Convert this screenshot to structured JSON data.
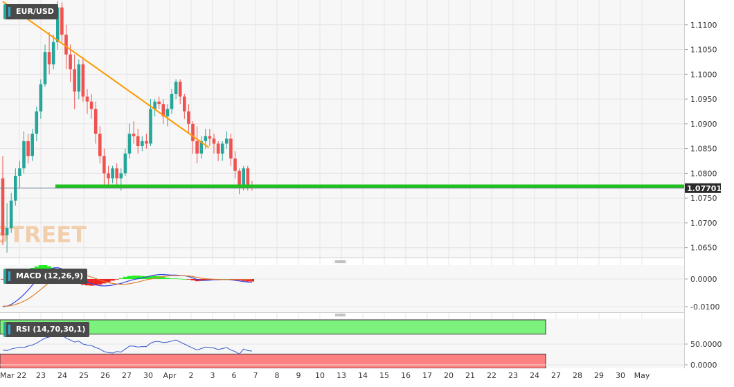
{
  "chart_data": [
    {
      "panel": "price",
      "type": "candlestick",
      "symbol": "EUR/USD",
      "watermark": "FXSTREET",
      "current_price_label": "1.07701",
      "current_price": 1.07701,
      "ylim": [
        1.063,
        1.115
      ],
      "y_ticks": [
        "1.1100",
        "1.1050",
        "1.1000",
        "1.0950",
        "1.0900",
        "1.0850",
        "1.0800",
        "1.0750",
        "1.0700",
        "1.0650"
      ],
      "y_tick_values": [
        1.11,
        1.105,
        1.1,
        1.095,
        1.09,
        1.085,
        1.08,
        1.075,
        1.07,
        1.065
      ],
      "x_ticks": [
        "Mar 22",
        "23",
        "24",
        "25",
        "26",
        "27",
        "30",
        "Apr",
        "2",
        "3",
        "6",
        "7",
        "8",
        "9",
        "10",
        "13",
        "14",
        "15",
        "16",
        "17",
        "20",
        "21",
        "22",
        "23",
        "24",
        "27",
        "28",
        "29",
        "30",
        "May"
      ],
      "support_level": 1.0774,
      "trendline": {
        "from": [
          0,
          1.1147
        ],
        "to": [
          48.8,
          1.0852
        ]
      },
      "candles": [
        [
          1.079,
          1.0835,
          1.0655,
          1.0675
        ],
        [
          1.0675,
          1.074,
          1.064,
          1.069
        ],
        [
          1.069,
          1.076,
          1.068,
          1.0745
        ],
        [
          1.0745,
          1.081,
          1.0735,
          1.0795
        ],
        [
          1.0795,
          1.0825,
          1.077,
          1.081
        ],
        [
          1.081,
          1.0885,
          1.08,
          1.0865
        ],
        [
          1.0865,
          1.088,
          1.082,
          1.0835
        ],
        [
          1.0835,
          1.089,
          1.0825,
          1.088
        ],
        [
          1.088,
          1.0935,
          1.0865,
          1.0925
        ],
        [
          1.0925,
          1.099,
          1.091,
          1.098
        ],
        [
          1.098,
          1.106,
          1.0975,
          1.1045
        ],
        [
          1.1045,
          1.1085,
          1.1,
          1.102
        ],
        [
          1.102,
          1.108,
          1.101,
          1.1065
        ],
        [
          1.1065,
          1.1148,
          1.105,
          1.1135
        ],
        [
          1.1135,
          1.1145,
          1.1065,
          1.108
        ],
        [
          1.108,
          1.11,
          1.101,
          1.104
        ],
        [
          1.104,
          1.106,
          1.0985,
          1.101
        ],
        [
          1.101,
          1.104,
          1.093,
          1.0965
        ],
        [
          1.0965,
          1.103,
          1.095,
          1.102
        ],
        [
          1.102,
          1.1035,
          1.0945,
          1.0955
        ],
        [
          1.0955,
          1.097,
          1.092,
          1.0945
        ],
        [
          1.0945,
          1.096,
          1.091,
          1.093
        ],
        [
          1.093,
          1.0945,
          1.086,
          1.088
        ],
        [
          1.088,
          1.0895,
          1.082,
          1.0835
        ],
        [
          1.0835,
          1.085,
          1.0775,
          1.08
        ],
        [
          1.08,
          1.0815,
          1.0775,
          1.079
        ],
        [
          1.079,
          1.0815,
          1.078,
          1.081
        ],
        [
          1.081,
          1.082,
          1.0775,
          1.079
        ],
        [
          1.079,
          1.081,
          1.0765,
          1.08
        ],
        [
          1.08,
          1.085,
          1.0795,
          1.084
        ],
        [
          1.084,
          1.09,
          1.083,
          1.088
        ],
        [
          1.088,
          1.0905,
          1.086,
          1.0875
        ],
        [
          1.0875,
          1.089,
          1.084,
          1.0855
        ],
        [
          1.0855,
          1.0875,
          1.0845,
          1.0865
        ],
        [
          1.0865,
          1.088,
          1.085,
          1.086
        ],
        [
          1.086,
          1.095,
          1.0855,
          1.093
        ],
        [
          1.093,
          1.095,
          1.0915,
          1.0945
        ],
        [
          1.0945,
          1.0955,
          1.093,
          1.094
        ],
        [
          1.094,
          1.095,
          1.09,
          1.0915
        ],
        [
          1.0915,
          1.094,
          1.0895,
          1.093
        ],
        [
          1.093,
          1.097,
          1.092,
          1.096
        ],
        [
          1.096,
          1.099,
          1.095,
          1.0985
        ],
        [
          1.0985,
          1.099,
          1.094,
          1.0955
        ],
        [
          1.0955,
          1.096,
          1.091,
          1.0925
        ],
        [
          1.0925,
          1.094,
          1.088,
          1.09
        ],
        [
          1.09,
          1.0905,
          1.084,
          1.0865
        ],
        [
          1.0865,
          1.0895,
          1.082,
          1.084
        ],
        [
          1.084,
          1.0875,
          1.083,
          1.0865
        ],
        [
          1.0865,
          1.089,
          1.085,
          1.0875
        ],
        [
          1.0875,
          1.089,
          1.0855,
          1.087
        ],
        [
          1.087,
          1.088,
          1.084,
          1.086
        ],
        [
          1.086,
          1.0865,
          1.0825,
          1.084
        ],
        [
          1.084,
          1.0865,
          1.0825,
          1.086
        ],
        [
          1.086,
          1.0885,
          1.085,
          1.087
        ],
        [
          1.087,
          1.088,
          1.0815,
          1.083
        ],
        [
          1.083,
          1.0845,
          1.079,
          1.0805
        ],
        [
          1.0805,
          1.081,
          1.0758,
          1.077
        ],
        [
          1.077,
          1.0815,
          1.0765,
          1.081
        ],
        [
          1.081,
          1.0815,
          1.0765,
          1.0775
        ],
        [
          1.0775,
          1.0785,
          1.0765,
          1.077
        ]
      ]
    },
    {
      "panel": "macd",
      "type": "macd",
      "label": "MACD (12,26,9)",
      "ylim": [
        -0.0115,
        0.0045
      ],
      "y_ticks": [
        "0.0000",
        "-0.0100"
      ],
      "y_tick_values": [
        0.0,
        -0.01
      ],
      "macd": [
        -0.01,
        -0.0098,
        -0.0092,
        -0.0082,
        -0.007,
        -0.0056,
        -0.004,
        -0.0022,
        -0.0005,
        0.0012,
        0.0025,
        0.0034,
        0.004,
        0.0041,
        0.0037,
        0.003,
        0.0021,
        0.0012,
        0.0004,
        -0.0004,
        -0.0011,
        -0.0017,
        -0.0021,
        -0.0024,
        -0.0025,
        -0.0024,
        -0.0022,
        -0.0019,
        -0.0016,
        -0.0011,
        -0.0006,
        -0.0002,
        0.0001,
        0.0004,
        0.0007,
        0.0011,
        0.0014,
        0.0016,
        0.0016,
        0.0015,
        0.0014,
        0.0014,
        0.0013,
        0.0012,
        0.0009,
        0.0004,
        -0.0002,
        -0.0004,
        -0.0005,
        -0.0004,
        -0.0003,
        -0.0003,
        -0.0002,
        -0.0002,
        -0.0003,
        -0.0005,
        -0.0007,
        -0.0009,
        -0.0011,
        -0.0012
      ],
      "signal": [
        -0.0098,
        -0.0098,
        -0.0096,
        -0.0092,
        -0.0087,
        -0.008,
        -0.0072,
        -0.0062,
        -0.005,
        -0.0038,
        -0.0025,
        -0.0012,
        0.0,
        0.001,
        0.0018,
        0.0023,
        0.0025,
        0.0024,
        0.0021,
        0.0017,
        0.0012,
        0.0007,
        0.0002,
        -0.0004,
        -0.0009,
        -0.0013,
        -0.0016,
        -0.0018,
        -0.0019,
        -0.0019,
        -0.0017,
        -0.0014,
        -0.0011,
        -0.0007,
        -0.0003,
        0.0,
        0.0003,
        0.0006,
        0.0009,
        0.0011,
        0.0012,
        0.0012,
        0.0012,
        0.0012,
        0.0011,
        0.0009,
        0.0006,
        0.0003,
        0.0001,
        0.0,
        -0.0001,
        -0.0002,
        -0.0002,
        -0.0002,
        -0.0002,
        -0.0002,
        -0.0002,
        -0.0002,
        -0.0002,
        -0.0003
      ]
    },
    {
      "panel": "rsi",
      "type": "rsi",
      "label": "RSI (14,70,30,1)",
      "ylim": [
        0,
        100
      ],
      "y_ticks": [
        "50.0000",
        "0.0000"
      ],
      "y_tick_values": [
        50,
        0
      ],
      "overbought": 70,
      "oversold": 30,
      "rsi": [
        38,
        37,
        40,
        42,
        44,
        43,
        46,
        48,
        52,
        57,
        62,
        64,
        66,
        70,
        68,
        62,
        58,
        54,
        56,
        50,
        48,
        47,
        43,
        40,
        35,
        33,
        32,
        35,
        34,
        40,
        46,
        46,
        44,
        45,
        45,
        52,
        55,
        55,
        53,
        54,
        56,
        58,
        54,
        50,
        46,
        42,
        38,
        41,
        44,
        43,
        42,
        39,
        41,
        43,
        38,
        35,
        30,
        40,
        37,
        36
      ]
    }
  ],
  "colors": {
    "up": "#26a69a",
    "down": "#ef5350",
    "support": "#1ec21e",
    "trendline": "#ff9900",
    "macd_line": "#3344dd",
    "signal_line": "#e08030",
    "hist_pos": "#22ee22",
    "hist_neg": "#ee2222",
    "rsi_line": "#3355cc",
    "rsi_overbought": "#7cf17c",
    "rsi_oversold": "#ff8080"
  }
}
